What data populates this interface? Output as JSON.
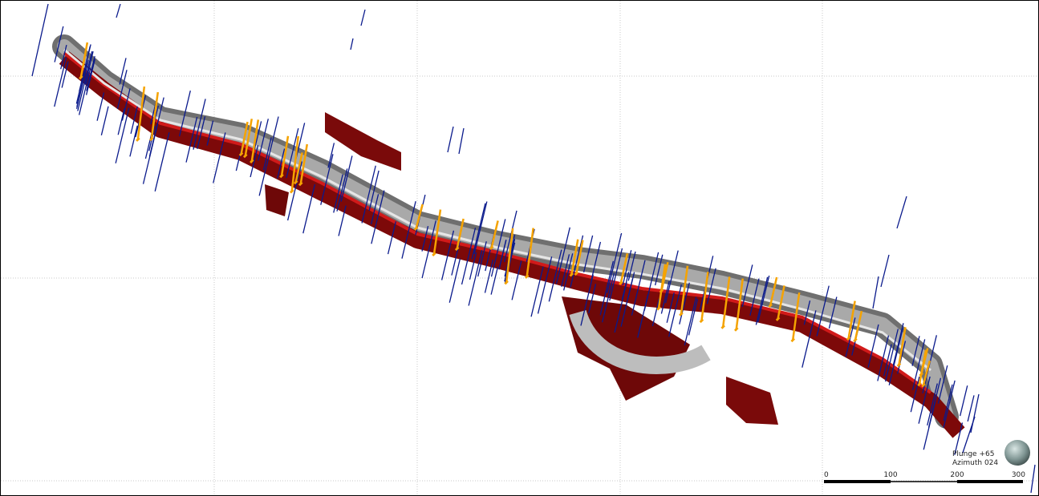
{
  "viewport": {
    "orientation": {
      "plunge": "Plunge +65",
      "azimuth": "Azimuth 024"
    }
  },
  "scale_bar": {
    "ticks": [
      0,
      100,
      200,
      300
    ]
  }
}
